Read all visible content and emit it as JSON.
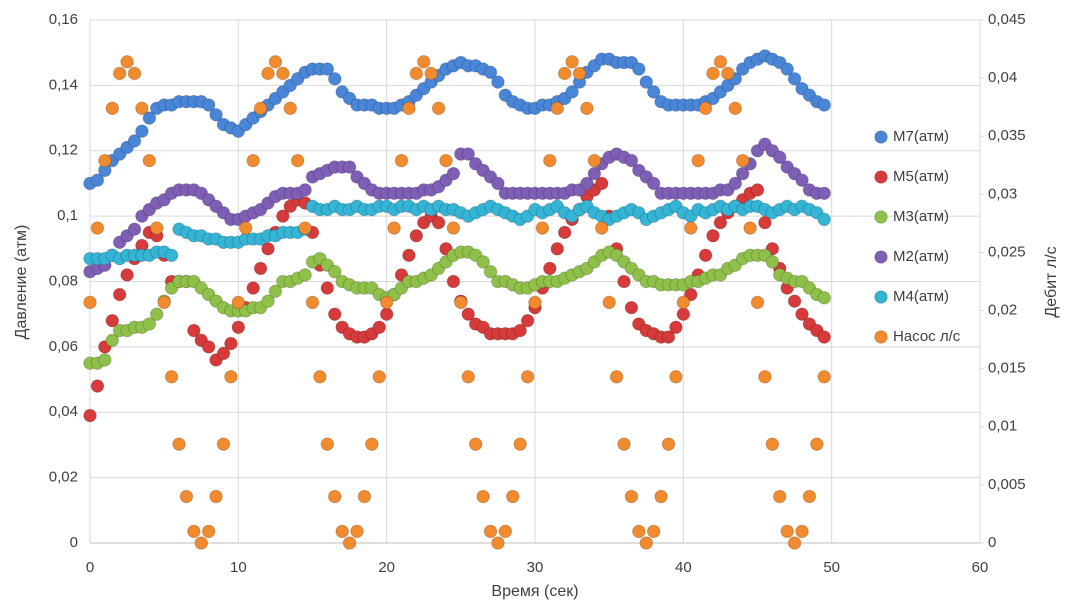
{
  "chart_data": {
    "type": "scatter",
    "xlabel": "Время (сек)",
    "ylabel": "Давление (атм)",
    "y2label": "Дебит л/с",
    "xlim": [
      0,
      60
    ],
    "xticks": [
      0,
      10,
      20,
      30,
      40,
      50,
      60
    ],
    "ylim": [
      0,
      0.16
    ],
    "yticks": [
      0,
      {
        "value": 0.02,
        "label": "0,02"
      },
      {
        "value": 0.04,
        "label": "0,04"
      },
      {
        "value": 0.06,
        "label": "0,06"
      },
      {
        "value": 0.08,
        "label": "0,08"
      },
      {
        "value": 0.1,
        "label": "0,1"
      },
      {
        "value": 0.12,
        "label": "0,12"
      },
      {
        "value": 0.14,
        "label": "0,14"
      },
      {
        "value": 0.16,
        "label": "0,16"
      }
    ],
    "y2lim": [
      0,
      0.045
    ],
    "y2ticks": [
      0,
      {
        "value": 0.005,
        "label": "0,005"
      },
      {
        "value": 0.01,
        "label": "0,01"
      },
      {
        "value": 0.015,
        "label": "0,015"
      },
      {
        "value": 0.02,
        "label": "0,02"
      },
      {
        "value": 0.025,
        "label": "0,025"
      },
      {
        "value": 0.03,
        "label": "0,03"
      },
      {
        "value": 0.035,
        "label": "0,035"
      },
      {
        "value": 0.04,
        "label": "0,04"
      },
      {
        "value": 0.045,
        "label": "0,045"
      }
    ],
    "grid": true,
    "legend": "right",
    "x": [
      0,
      0.5,
      1,
      1.5,
      2,
      2.5,
      3,
      3.5,
      4,
      4.5,
      5,
      5.5,
      6,
      6.5,
      7,
      7.5,
      8,
      8.5,
      9,
      9.5,
      10,
      10.5,
      11,
      11.5,
      12,
      12.5,
      13,
      13.5,
      14,
      14.5,
      15,
      15.5,
      16,
      16.5,
      17,
      17.5,
      18,
      18.5,
      19,
      19.5,
      20,
      20.5,
      21,
      21.5,
      22,
      22.5,
      23,
      23.5,
      24,
      24.5,
      25,
      25.5,
      26,
      26.5,
      27,
      27.5,
      28,
      28.5,
      29,
      29.5,
      30,
      30.5,
      31,
      31.5,
      32,
      32.5,
      33,
      33.5,
      34,
      34.5,
      35,
      35.5,
      36,
      36.5,
      37,
      37.5,
      38,
      38.5,
      39,
      39.5,
      40,
      40.5,
      41,
      41.5,
      42,
      42.5,
      43,
      43.5,
      44,
      44.5,
      45,
      45.5,
      46,
      46.5,
      47,
      47.5,
      48,
      48.5,
      49,
      49.5
    ],
    "series": [
      {
        "name": "M7(атм)",
        "color": "#4a86d8",
        "values": [
          0.11,
          0.111,
          0.114,
          0.117,
          0.119,
          0.121,
          0.123,
          0.126,
          0.13,
          0.133,
          0.134,
          0.134,
          0.135,
          0.135,
          0.135,
          0.135,
          0.134,
          0.131,
          0.128,
          0.127,
          0.126,
          0.128,
          0.13,
          0.132,
          0.134,
          0.136,
          0.138,
          0.14,
          0.142,
          0.144,
          0.145,
          0.145,
          0.145,
          0.142,
          0.138,
          0.136,
          0.134,
          0.134,
          0.134,
          0.133,
          0.133,
          0.133,
          0.134,
          0.135,
          0.137,
          0.139,
          0.141,
          0.143,
          0.145,
          0.146,
          0.147,
          0.146,
          0.146,
          0.145,
          0.144,
          0.141,
          0.137,
          0.135,
          0.134,
          0.133,
          0.133,
          0.134,
          0.134,
          0.135,
          0.136,
          0.138,
          0.141,
          0.144,
          0.146,
          0.148,
          0.148,
          0.147,
          0.147,
          0.147,
          0.145,
          0.141,
          0.138,
          0.135,
          0.134,
          0.134,
          0.134,
          0.134,
          0.134,
          0.135,
          0.136,
          0.138,
          0.14,
          0.142,
          0.145,
          0.147,
          0.148,
          0.149,
          0.148,
          0.147,
          0.145,
          0.142,
          0.139,
          0.137,
          0.135,
          0.134
        ]
      },
      {
        "name": "M5(атм)",
        "color": "#d63a3a",
        "values": [
          0.039,
          0.048,
          0.06,
          0.068,
          0.076,
          0.082,
          0.087,
          0.091,
          0.095,
          0.094,
          0.088,
          0.08,
          0.08,
          0.08,
          0.065,
          0.062,
          0.06,
          0.056,
          0.058,
          0.061,
          0.066,
          0.072,
          0.078,
          0.084,
          0.09,
          0.095,
          0.1,
          0.103,
          0.105,
          0.104,
          0.095,
          0.085,
          0.078,
          0.07,
          0.066,
          0.064,
          0.063,
          0.063,
          0.064,
          0.066,
          0.07,
          0.076,
          0.082,
          0.088,
          0.094,
          0.098,
          0.1,
          0.098,
          0.09,
          0.08,
          0.074,
          0.07,
          0.067,
          0.066,
          0.064,
          0.064,
          0.064,
          0.064,
          0.065,
          0.068,
          0.072,
          0.078,
          0.084,
          0.09,
          0.095,
          0.099,
          0.102,
          0.106,
          0.108,
          0.11,
          0.1,
          0.09,
          0.08,
          0.072,
          0.067,
          0.065,
          0.064,
          0.063,
          0.063,
          0.066,
          0.07,
          0.076,
          0.082,
          0.088,
          0.094,
          0.098,
          0.101,
          0.103,
          0.105,
          0.107,
          0.108,
          0.098,
          0.09,
          0.084,
          0.078,
          0.074,
          0.07,
          0.067,
          0.065,
          0.063
        ]
      },
      {
        "name": "M3(атм)",
        "color": "#8fc04a",
        "values": [
          0.055,
          0.055,
          0.056,
          0.062,
          0.065,
          0.065,
          0.066,
          0.066,
          0.067,
          0.07,
          0.074,
          0.078,
          0.08,
          0.08,
          0.08,
          0.078,
          0.076,
          0.074,
          0.072,
          0.071,
          0.071,
          0.071,
          0.072,
          0.072,
          0.074,
          0.077,
          0.08,
          0.08,
          0.081,
          0.082,
          0.086,
          0.087,
          0.085,
          0.083,
          0.08,
          0.079,
          0.078,
          0.078,
          0.078,
          0.076,
          0.075,
          0.076,
          0.078,
          0.08,
          0.08,
          0.081,
          0.082,
          0.084,
          0.086,
          0.088,
          0.089,
          0.089,
          0.088,
          0.086,
          0.083,
          0.08,
          0.08,
          0.079,
          0.078,
          0.078,
          0.079,
          0.08,
          0.08,
          0.08,
          0.081,
          0.082,
          0.083,
          0.084,
          0.086,
          0.088,
          0.089,
          0.088,
          0.086,
          0.084,
          0.082,
          0.08,
          0.08,
          0.079,
          0.079,
          0.079,
          0.079,
          0.08,
          0.08,
          0.081,
          0.082,
          0.082,
          0.084,
          0.085,
          0.087,
          0.088,
          0.088,
          0.088,
          0.086,
          0.082,
          0.081,
          0.08,
          0.08,
          0.078,
          0.076,
          0.075
        ]
      },
      {
        "name": "M2(атм)",
        "color": "#7f5fb5",
        "values": [
          0.083,
          0.084,
          0.085,
          0.088,
          0.092,
          0.094,
          0.096,
          0.1,
          0.102,
          0.104,
          0.105,
          0.107,
          0.108,
          0.108,
          0.108,
          0.107,
          0.105,
          0.103,
          0.101,
          0.099,
          0.099,
          0.1,
          0.101,
          0.102,
          0.104,
          0.106,
          0.107,
          0.107,
          0.107,
          0.108,
          0.112,
          0.113,
          0.114,
          0.115,
          0.115,
          0.115,
          0.112,
          0.11,
          0.108,
          0.107,
          0.107,
          0.107,
          0.107,
          0.107,
          0.107,
          0.108,
          0.108,
          0.109,
          0.111,
          0.113,
          0.119,
          0.119,
          0.116,
          0.114,
          0.112,
          0.11,
          0.107,
          0.107,
          0.107,
          0.107,
          0.107,
          0.107,
          0.107,
          0.107,
          0.107,
          0.108,
          0.108,
          0.11,
          0.113,
          0.116,
          0.118,
          0.119,
          0.118,
          0.117,
          0.114,
          0.112,
          0.11,
          0.107,
          0.107,
          0.107,
          0.107,
          0.107,
          0.107,
          0.107,
          0.107,
          0.108,
          0.108,
          0.11,
          0.113,
          0.116,
          0.12,
          0.122,
          0.12,
          0.118,
          0.115,
          0.113,
          0.111,
          0.108,
          0.107,
          0.107
        ]
      },
      {
        "name": "M4(атм)",
        "color": "#35b5d6",
        "values": [
          0.087,
          0.087,
          0.087,
          0.088,
          0.087,
          0.088,
          0.088,
          0.088,
          0.088,
          0.089,
          0.089,
          0.088,
          0.096,
          0.095,
          0.094,
          0.094,
          0.093,
          0.093,
          0.092,
          0.092,
          0.092,
          0.093,
          0.093,
          0.093,
          0.094,
          0.094,
          0.095,
          0.095,
          0.095,
          0.096,
          0.103,
          0.102,
          0.102,
          0.103,
          0.102,
          0.102,
          0.103,
          0.102,
          0.102,
          0.103,
          0.103,
          0.102,
          0.103,
          0.103,
          0.102,
          0.103,
          0.102,
          0.103,
          0.102,
          0.102,
          0.101,
          0.1,
          0.101,
          0.102,
          0.103,
          0.102,
          0.101,
          0.1,
          0.099,
          0.1,
          0.102,
          0.101,
          0.102,
          0.103,
          0.101,
          0.1,
          0.102,
          0.103,
          0.101,
          0.1,
          0.099,
          0.1,
          0.101,
          0.102,
          0.101,
          0.099,
          0.1,
          0.101,
          0.102,
          0.103,
          0.101,
          0.1,
          0.102,
          0.101,
          0.102,
          0.103,
          0.102,
          0.103,
          0.102,
          0.103,
          0.103,
          0.102,
          0.101,
          0.102,
          0.103,
          0.102,
          0.103,
          0.102,
          0.101,
          0.099
        ]
      },
      {
        "name": "Насос л/с",
        "color": "#f28a2e",
        "axis": "y2",
        "values": [
          0.0207,
          0.0271,
          0.0329,
          0.0374,
          0.0404,
          0.0414,
          0.0404,
          0.0374,
          0.0329,
          0.0271,
          0.0207,
          0.0143,
          0.0085,
          0.004,
          0.001,
          0,
          0.001,
          0.004,
          0.0085,
          0.0143,
          0.0207,
          0.0271,
          0.0329,
          0.0374,
          0.0404,
          0.0414,
          0.0404,
          0.0374,
          0.0329,
          0.0271,
          0.0207,
          0.0143,
          0.0085,
          0.004,
          0.001,
          0,
          0.001,
          0.004,
          0.0085,
          0.0143,
          0.0207,
          0.0271,
          0.0329,
          0.0374,
          0.0404,
          0.0414,
          0.0404,
          0.0374,
          0.0329,
          0.0271,
          0.0207,
          0.0143,
          0.0085,
          0.004,
          0.001,
          0,
          0.001,
          0.004,
          0.0085,
          0.0143,
          0.0207,
          0.0271,
          0.0329,
          0.0374,
          0.0404,
          0.0414,
          0.0404,
          0.0374,
          0.0329,
          0.0271,
          0.0207,
          0.0143,
          0.0085,
          0.004,
          0.001,
          0,
          0.001,
          0.004,
          0.0085,
          0.0143,
          0.0207,
          0.0271,
          0.0329,
          0.0374,
          0.0404,
          0.0414,
          0.0404,
          0.0374,
          0.0329,
          0.0271,
          0.0207,
          0.0143,
          0.0085,
          0.004,
          0.001,
          0,
          0.001,
          0.004,
          0.0085,
          0.0143
        ]
      }
    ]
  }
}
